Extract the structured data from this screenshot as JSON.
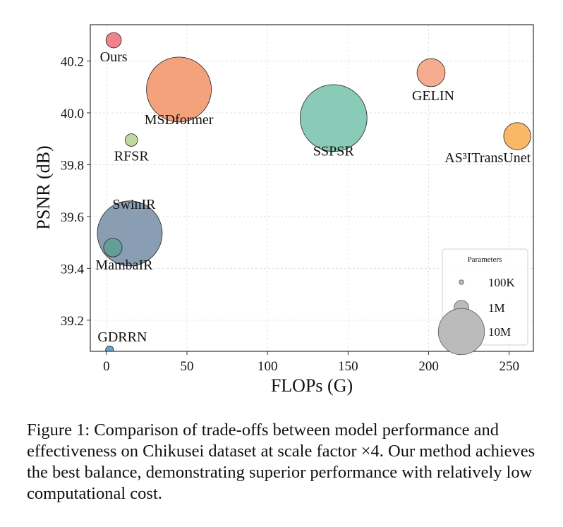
{
  "chart_data": {
    "type": "scatter",
    "title": "",
    "xlabel": "FLOPs (G)",
    "ylabel": "PSNR (dB)",
    "xlim": [
      -10,
      265
    ],
    "ylim": [
      39.08,
      40.34
    ],
    "xticks": [
      0,
      50,
      100,
      150,
      200,
      250
    ],
    "yticks": [
      39.2,
      39.4,
      39.6,
      39.8,
      40.0,
      40.2
    ],
    "xtick_labels": [
      "0",
      "50",
      "100",
      "150",
      "200",
      "250"
    ],
    "ytick_labels": [
      "39.2",
      "39.4",
      "39.6",
      "39.8",
      "40.0",
      "40.2"
    ],
    "grid": true,
    "legend": {
      "title": "Parameters",
      "placement": "lower-right",
      "entries": [
        {
          "label": "100K",
          "params_m": 0.1
        },
        {
          "label": "1M",
          "params_m": 1
        },
        {
          "label": "10M",
          "params_m": 10
        }
      ]
    },
    "points": [
      {
        "name": "Ours",
        "x": 4.5,
        "y": 40.28,
        "params_m": 0.9,
        "color": "#f0707a"
      },
      {
        "name": "MSDformer",
        "x": 45,
        "y": 40.09,
        "params_m": 16.0,
        "color": "#f3956a"
      },
      {
        "name": "RFSR",
        "x": 15.5,
        "y": 39.895,
        "params_m": 0.6,
        "color": "#b5d594"
      },
      {
        "name": "SwinIR",
        "x": 14.5,
        "y": 39.535,
        "params_m": 16.0,
        "color": "#7a91a8"
      },
      {
        "name": "MambaIR",
        "x": 4,
        "y": 39.48,
        "params_m": 1.3,
        "color": "#5f9e95"
      },
      {
        "name": "GDRRN",
        "x": 2,
        "y": 39.085,
        "params_m": 0.25,
        "color": "#5a94b8"
      },
      {
        "name": "SSPSR",
        "x": 141,
        "y": 39.98,
        "params_m": 17.0,
        "color": "#79c4ad"
      },
      {
        "name": "GELIN",
        "x": 201.5,
        "y": 40.155,
        "params_m": 3.0,
        "color": "#f5a07f"
      },
      {
        "name": "AS³ITransUnet",
        "x": 255,
        "y": 39.91,
        "params_m": 2.8,
        "color": "#f8ae50"
      }
    ]
  },
  "caption": "Figure 1: Comparison of trade-offs between model performance and effectiveness on Chikusei dataset at scale factor ×4. Our method achieves the best balance, demonstrating superior performance with relatively low computational cost."
}
